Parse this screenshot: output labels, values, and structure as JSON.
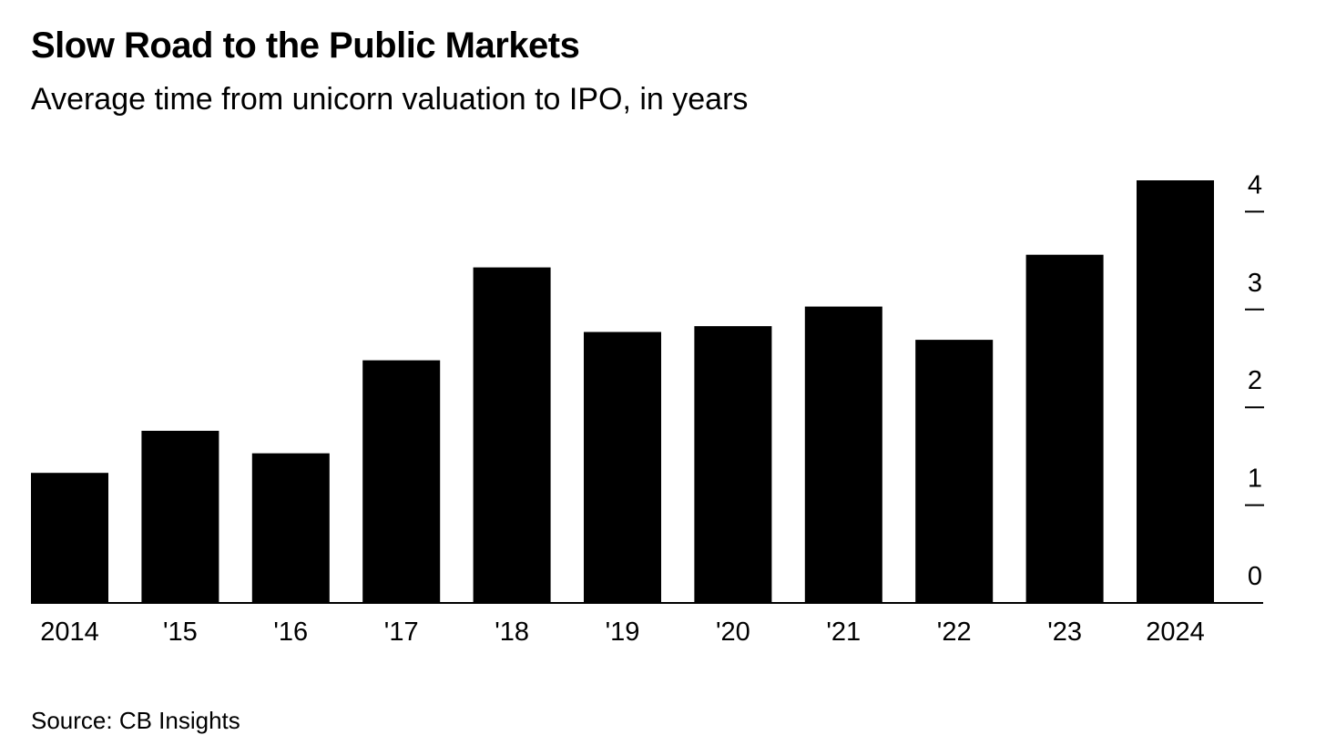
{
  "chart_data": {
    "type": "bar",
    "title": "Slow Road to the Public Markets",
    "subtitle": "Average time from unicorn valuation to IPO, in years",
    "source": "Source: CB Insights",
    "categories": [
      "2014",
      "'15",
      "'16",
      "'17",
      "'18",
      "'19",
      "'20",
      "'21",
      "'22",
      "'23",
      "2024"
    ],
    "values": [
      1.33,
      1.76,
      1.53,
      2.48,
      3.43,
      2.77,
      2.83,
      3.03,
      2.69,
      3.56,
      4.32
    ],
    "ylim": [
      0,
      4.5
    ],
    "yticks": [
      0,
      1,
      2,
      3,
      4
    ],
    "y_axis_position": "right",
    "bar_color": "#000000",
    "grid": false
  }
}
